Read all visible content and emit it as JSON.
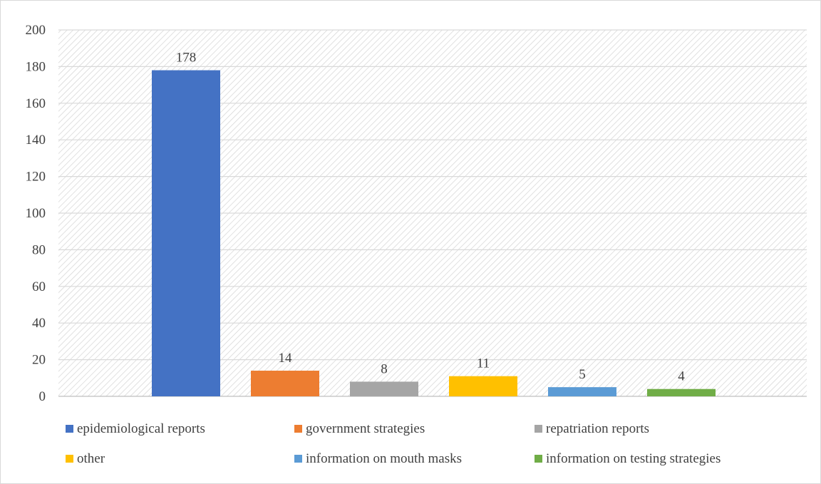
{
  "chart_data": {
    "type": "bar",
    "categories": [
      "epidemiological reports",
      "government strategies",
      "repatriation reports",
      "other",
      "information on mouth masks",
      "information on testing strategies"
    ],
    "values": [
      178,
      14,
      8,
      11,
      5,
      4
    ],
    "colors": [
      "#4472c4",
      "#ed7d31",
      "#a5a5a5",
      "#ffc000",
      "#5b9bd5",
      "#70ad47"
    ],
    "ylim": [
      0,
      200
    ],
    "yticks": [
      "0",
      "20",
      "40",
      "60",
      "80",
      "100",
      "120",
      "140",
      "160",
      "180",
      "200"
    ],
    "gridlines": true,
    "background_pattern": "diagonal-hatch",
    "legend_position": "bottom",
    "legend": [
      "epidemiological reports",
      "government strategies",
      "repatriation reports",
      "other",
      "information on mouth masks",
      "information on testing strategies"
    ],
    "title": "",
    "xlabel": "",
    "ylabel": ""
  }
}
